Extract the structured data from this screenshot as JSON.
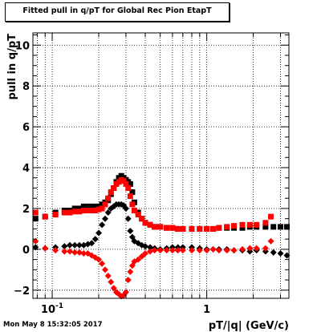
{
  "header": {
    "title": "Fitted pull in q/pT for Global Rec Pion EtapT"
  },
  "footer": {
    "timestamp": "Mon May  8 15:32:05 2017"
  },
  "chart_data": {
    "type": "scatter",
    "title": "Fitted pull in q/pT for Global Rec Pion EtapT",
    "xlabel": "pT/|q| (GeV/c)",
    "ylabel": "pull in q/pT",
    "xscale": "log",
    "xlim": [
      0.075,
      3.4
    ],
    "ylim": [
      -2.4,
      10.6
    ],
    "grid": true,
    "x_ticks": [
      {
        "value": 0.1,
        "label": "10",
        "sup": "-1"
      },
      {
        "value": 1,
        "label": "1"
      }
    ],
    "y_ticks": [
      {
        "value": -2,
        "label": "−2"
      },
      {
        "value": 0,
        "label": "0"
      },
      {
        "value": 2,
        "label": "2"
      },
      {
        "value": 4,
        "label": "4"
      },
      {
        "value": 6,
        "label": "6"
      },
      {
        "value": 8,
        "label": "8"
      },
      {
        "value": 10,
        "label": "10"
      }
    ],
    "colors": {
      "black": "#000000",
      "red": "#ff0000"
    },
    "series": [
      {
        "marker": "square",
        "color": "#000000",
        "x": [
          0.078,
          0.09,
          0.105,
          0.12,
          0.13,
          0.14,
          0.15,
          0.16,
          0.17,
          0.18,
          0.19,
          0.2,
          0.21,
          0.22,
          0.23,
          0.24,
          0.25,
          0.26,
          0.27,
          0.28,
          0.29,
          0.3,
          0.31,
          0.32,
          0.33,
          0.34,
          0.36,
          0.38,
          0.4,
          0.43,
          0.46,
          0.5,
          0.55,
          0.6,
          0.65,
          0.7,
          0.8,
          0.9,
          1.0,
          1.1,
          1.2,
          1.35,
          1.5,
          1.7,
          1.9,
          2.1,
          2.4,
          2.7,
          3.0,
          3.3
        ],
        "y": [
          1.5,
          1.6,
          1.8,
          1.9,
          1.9,
          2.0,
          2.0,
          2.1,
          2.1,
          2.1,
          2.1,
          2.1,
          2.2,
          2.3,
          2.4,
          2.7,
          3.0,
          3.3,
          3.5,
          3.6,
          3.5,
          3.4,
          3.3,
          3.2,
          2.8,
          2.3,
          1.8,
          1.5,
          1.3,
          1.2,
          1.1,
          1.1,
          1.05,
          1.05,
          1.0,
          1.0,
          1.0,
          1.0,
          1.0,
          1.0,
          1.05,
          1.05,
          1.05,
          1.05,
          1.1,
          1.1,
          1.1,
          1.1,
          1.1,
          1.1
        ]
      },
      {
        "marker": "square",
        "color": "#ff0000",
        "x": [
          0.078,
          0.09,
          0.105,
          0.12,
          0.13,
          0.14,
          0.15,
          0.16,
          0.17,
          0.18,
          0.19,
          0.2,
          0.21,
          0.22,
          0.23,
          0.24,
          0.25,
          0.26,
          0.27,
          0.28,
          0.29,
          0.3,
          0.31,
          0.32,
          0.33,
          0.34,
          0.36,
          0.38,
          0.4,
          0.43,
          0.46,
          0.5,
          0.55,
          0.6,
          0.65,
          0.7,
          0.8,
          0.9,
          1.0,
          1.1,
          1.2,
          1.35,
          1.5,
          1.7,
          1.9,
          2.1,
          2.4,
          2.6
        ],
        "y": [
          1.8,
          1.6,
          1.7,
          1.8,
          1.8,
          1.85,
          1.85,
          1.9,
          1.9,
          1.9,
          1.9,
          1.95,
          2.0,
          2.2,
          2.5,
          2.8,
          3.0,
          3.2,
          3.3,
          3.4,
          3.35,
          3.2,
          3.0,
          2.6,
          2.2,
          1.9,
          1.7,
          1.5,
          1.3,
          1.2,
          1.1,
          1.1,
          1.05,
          1.05,
          1.0,
          1.0,
          1.0,
          1.0,
          1.0,
          1.0,
          1.05,
          1.1,
          1.15,
          1.2,
          1.2,
          1.2,
          1.3,
          1.6
        ]
      },
      {
        "marker": "diamond",
        "color": "#000000",
        "x": [
          0.078,
          0.09,
          0.105,
          0.12,
          0.13,
          0.14,
          0.15,
          0.16,
          0.17,
          0.18,
          0.19,
          0.2,
          0.21,
          0.22,
          0.23,
          0.24,
          0.25,
          0.26,
          0.27,
          0.28,
          0.29,
          0.3,
          0.31,
          0.32,
          0.33,
          0.34,
          0.36,
          0.38,
          0.4,
          0.43,
          0.46,
          0.5,
          0.55,
          0.6,
          0.65,
          0.7,
          0.8,
          0.9,
          1.0,
          1.1,
          1.2,
          1.35,
          1.5,
          1.7,
          1.9,
          2.1,
          2.4,
          2.7,
          3.0,
          3.3
        ],
        "y": [
          0.1,
          0.05,
          0.1,
          0.15,
          0.2,
          0.2,
          0.2,
          0.2,
          0.25,
          0.3,
          0.5,
          0.8,
          1.2,
          1.5,
          1.8,
          2.0,
          2.1,
          2.2,
          2.2,
          2.2,
          2.15,
          2.0,
          1.5,
          0.9,
          0.6,
          0.4,
          0.3,
          0.2,
          0.15,
          0.1,
          0.05,
          0.0,
          0.05,
          0.1,
          0.1,
          0.1,
          0.1,
          0.05,
          0.0,
          0.0,
          0.0,
          0.0,
          -0.05,
          -0.05,
          -0.1,
          -0.05,
          -0.1,
          -0.15,
          -0.2,
          -0.3
        ]
      },
      {
        "marker": "diamond",
        "color": "#ff0000",
        "x": [
          0.078,
          0.09,
          0.105,
          0.12,
          0.13,
          0.14,
          0.15,
          0.16,
          0.17,
          0.18,
          0.19,
          0.2,
          0.21,
          0.22,
          0.23,
          0.24,
          0.25,
          0.26,
          0.27,
          0.28,
          0.29,
          0.3,
          0.31,
          0.32,
          0.33,
          0.34,
          0.36,
          0.38,
          0.4,
          0.43,
          0.46,
          0.5,
          0.55,
          0.6,
          0.65,
          0.7,
          0.8,
          0.9,
          1.0,
          1.1,
          1.2,
          1.35,
          1.5,
          1.7,
          1.9,
          2.1,
          2.4,
          2.6
        ],
        "y": [
          0.4,
          0.05,
          -0.05,
          -0.1,
          -0.1,
          -0.15,
          -0.15,
          -0.2,
          -0.2,
          -0.3,
          -0.4,
          -0.5,
          -0.7,
          -1.0,
          -1.3,
          -1.6,
          -1.9,
          -2.1,
          -2.2,
          -2.3,
          -2.25,
          -2.1,
          -1.5,
          -1.1,
          -0.8,
          -0.6,
          -0.5,
          -0.35,
          -0.2,
          -0.1,
          -0.05,
          -0.05,
          -0.05,
          -0.05,
          -0.05,
          -0.05,
          -0.05,
          -0.05,
          -0.05,
          0.0,
          -0.05,
          -0.05,
          -0.05,
          0.0,
          0.05,
          0.05,
          0.05,
          0.4
        ]
      }
    ]
  }
}
